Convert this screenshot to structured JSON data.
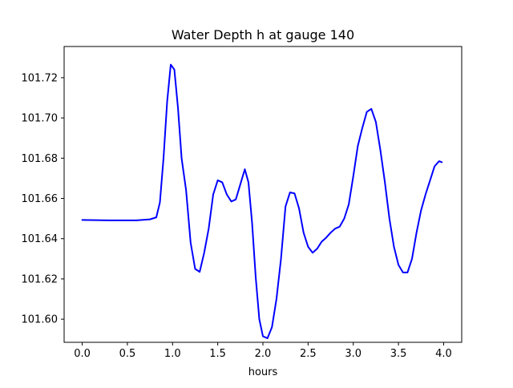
{
  "chart_data": {
    "type": "line",
    "title": "Water Depth h at gauge 140",
    "xlabel": "hours",
    "ylabel": "",
    "xlim": [
      -0.2,
      4.2
    ],
    "ylim": [
      101.5885,
      101.7355
    ],
    "xticks": [
      0.0,
      0.5,
      1.0,
      1.5,
      2.0,
      2.5,
      3.0,
      3.5,
      4.0
    ],
    "xtick_labels": [
      "0.0",
      "0.5",
      "1.0",
      "1.5",
      "2.0",
      "2.5",
      "3.0",
      "3.5",
      "4.0"
    ],
    "yticks": [
      101.6,
      101.62,
      101.64,
      101.66,
      101.68,
      101.7,
      101.72
    ],
    "ytick_labels": [
      "101.60",
      "101.62",
      "101.64",
      "101.66",
      "101.68",
      "101.70",
      "101.72"
    ],
    "grid": false,
    "series": [
      {
        "color": "#0000ff",
        "x": [
          0.0,
          0.3,
          0.6,
          0.75,
          0.82,
          0.86,
          0.9,
          0.94,
          0.98,
          1.02,
          1.06,
          1.1,
          1.15,
          1.2,
          1.25,
          1.3,
          1.35,
          1.4,
          1.45,
          1.5,
          1.55,
          1.6,
          1.65,
          1.7,
          1.75,
          1.8,
          1.84,
          1.88,
          1.92,
          1.96,
          2.0,
          2.05,
          2.1,
          2.15,
          2.2,
          2.25,
          2.3,
          2.35,
          2.4,
          2.45,
          2.5,
          2.55,
          2.6,
          2.65,
          2.7,
          2.75,
          2.8,
          2.85,
          2.9,
          2.95,
          3.0,
          3.05,
          3.1,
          3.15,
          3.2,
          3.25,
          3.3,
          3.35,
          3.4,
          3.45,
          3.5,
          3.55,
          3.6,
          3.65,
          3.7,
          3.75,
          3.8,
          3.85,
          3.9,
          3.95,
          3.98
        ],
        "y": [
          101.6493,
          101.6491,
          101.6491,
          101.6496,
          101.6506,
          101.658,
          101.68,
          101.708,
          101.7265,
          101.724,
          101.705,
          101.68,
          101.664,
          101.638,
          101.625,
          101.6235,
          101.633,
          101.645,
          101.662,
          101.669,
          101.668,
          101.662,
          101.6585,
          101.6595,
          101.667,
          101.6745,
          101.668,
          101.648,
          101.621,
          101.6,
          101.5915,
          101.5905,
          101.596,
          101.61,
          101.63,
          101.656,
          101.663,
          101.6625,
          101.655,
          101.643,
          101.636,
          101.633,
          101.635,
          101.6385,
          101.6405,
          101.643,
          101.645,
          101.646,
          101.65,
          101.657,
          101.671,
          101.686,
          101.695,
          101.703,
          101.7045,
          101.698,
          101.684,
          101.668,
          101.65,
          101.636,
          101.627,
          101.6232,
          101.6232,
          101.63,
          101.643,
          101.654,
          101.662,
          101.669,
          101.676,
          101.6785,
          101.678
        ]
      }
    ]
  }
}
